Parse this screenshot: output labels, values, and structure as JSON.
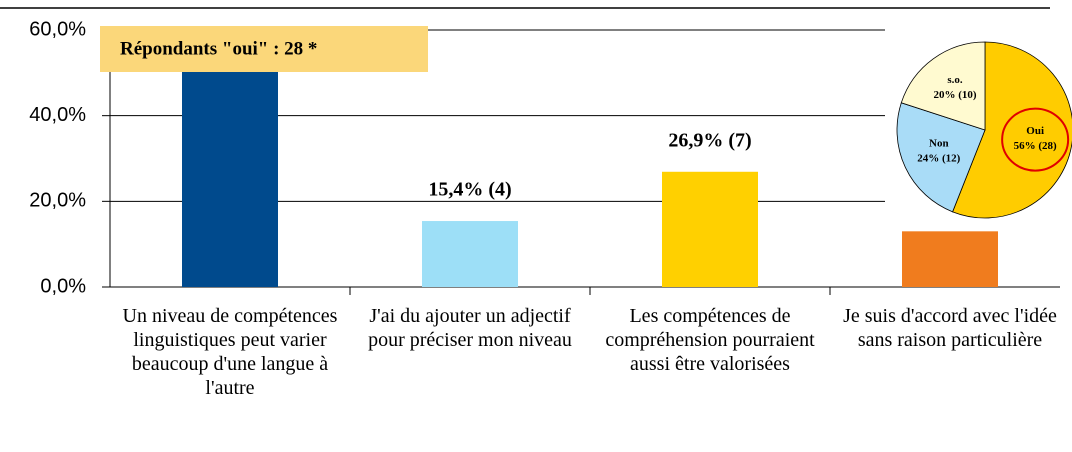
{
  "chart_data": [
    {
      "type": "bar",
      "annotation": "Répondants \"oui\" : 28 *",
      "categories": [
        "Un niveau de compétences linguistiques peut varier beaucoup d'une langue à l'autre",
        "J'ai du ajouter un adjectif pour préciser mon niveau",
        "Les compétences de compréhension pourraient aussi être valorisées",
        "Je suis d'accord avec l'idée sans raison particulière"
      ],
      "values": [
        55,
        15.4,
        26.9,
        13
      ],
      "value_labels": [
        null,
        "15,4% (4)",
        "26,9% (7)",
        null
      ],
      "colors": [
        "#004a8d",
        "#9ddff7",
        "#ffd000",
        "#f07c1e"
      ],
      "ylim": [
        0,
        60
      ],
      "yticks": [
        {
          "value": 0,
          "label": "0,0%"
        },
        {
          "value": 20,
          "label": "20,0%"
        },
        {
          "value": 40,
          "label": "40,0%"
        },
        {
          "value": 60,
          "label": "60,0%"
        }
      ],
      "grid": true
    },
    {
      "type": "pie",
      "categories": [
        "Oui",
        "Non",
        "s.o."
      ],
      "values": [
        56,
        24,
        20
      ],
      "value_labels": [
        "56% (28)",
        "24% (12)",
        "20% (10)"
      ],
      "colors": [
        "#ffcc00",
        "#a9dcf7",
        "#fffad0"
      ]
    }
  ]
}
